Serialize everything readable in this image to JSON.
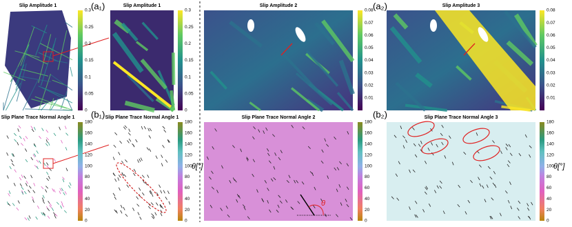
{
  "figure": {
    "labels": [
      "(a₁)",
      "(a₂)",
      "(b₁)",
      "(b₂)"
    ],
    "angle_symbol": "θ",
    "panels": [
      {
        "title": "Slip Amplitude 1",
        "ticks": [
          "0.3",
          "0.25",
          "0.2",
          "0.15",
          "0.1",
          "0.05",
          "0"
        ]
      },
      {
        "title": "Slip Amplitude 1",
        "ticks": [
          "0.3",
          "0.25",
          "0.2",
          "0.15",
          "0.1",
          "0.05",
          "0"
        ]
      },
      {
        "title": "Slip Amplitude 2",
        "ticks": [
          "0.08",
          "0.07",
          "0.06",
          "0.05",
          "0.04",
          "0.03",
          "0.02",
          "0.01"
        ]
      },
      {
        "title": "Slip Amplitude 3",
        "ticks": [
          "0.08",
          "0.07",
          "0.06",
          "0.05",
          "0.04",
          "0.03",
          "0.02",
          "0.01"
        ]
      },
      {
        "title": "Slip Plane Trace Normal Angle 1",
        "ticks": [
          "180",
          "160",
          "140",
          "120",
          "100",
          "80",
          "60",
          "40",
          "20",
          "0"
        ]
      },
      {
        "title": "Slip Plane Trace Normal Angle 1",
        "ticks": [
          "180",
          "160",
          "140",
          "120",
          "100",
          "80",
          "60",
          "40",
          "20",
          "0"
        ],
        "unit": "θ[°]"
      },
      {
        "title": "Slip Plane Trace Normal Angle 2",
        "ticks": [
          "180",
          "160",
          "140",
          "120",
          "100",
          "80",
          "60",
          "40",
          "20",
          "0"
        ]
      },
      {
        "title": "Slip Plane Trace Normal Angle 3",
        "ticks": [
          "180",
          "160",
          "140",
          "120",
          "100",
          "80",
          "60",
          "40",
          "20",
          "0"
        ],
        "unit": "θ[°]"
      }
    ]
  }
}
